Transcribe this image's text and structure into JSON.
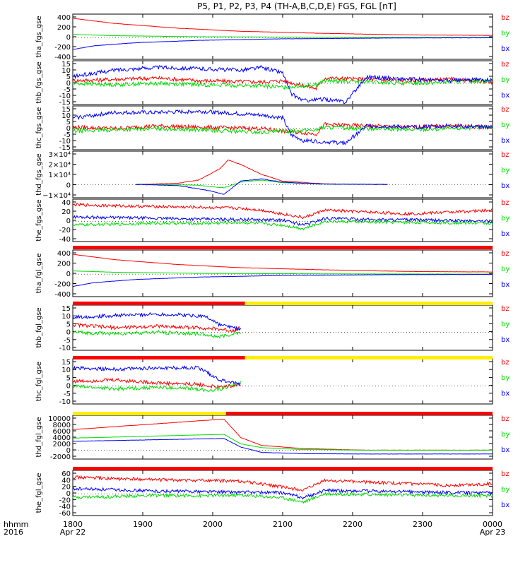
{
  "title": "P5, P1, P2, P3, P4 (TH-A,B,C,D,E) FGS, FGL [nT]",
  "colors": {
    "bz": "#ff0000",
    "by": "#00dd00",
    "bx": "#0000ff",
    "flag_red": "#ff0000",
    "flag_yellow": "#ffee00",
    "axis": "#000000"
  },
  "chart_data": {
    "type": "line",
    "x_axis": {
      "ticks": [
        {
          "time": "1800",
          "date": "Apr 22"
        },
        {
          "time": "1900",
          "date": ""
        },
        {
          "time": "2000",
          "date": ""
        },
        {
          "time": "2100",
          "date": ""
        },
        {
          "time": "2200",
          "date": ""
        },
        {
          "time": "2300",
          "date": ""
        },
        {
          "time": "0000",
          "date": "Apr 23"
        }
      ],
      "label_top": "hhmm",
      "label_bottom": "2016"
    },
    "panels": [
      {
        "ylabel": "tha_fgs_gse",
        "yticks": [
          "400",
          "200",
          "0",
          "-200",
          "-400"
        ],
        "ylim": [
          -420,
          450
        ],
        "legend": [
          "bz",
          "by",
          "bx"
        ],
        "series": [
          {
            "key": "bz",
            "x": [
              0,
              0.1,
              0.25,
              0.4,
              0.6,
              0.8,
              1.0
            ],
            "y": [
              370,
              270,
              180,
              120,
              80,
              50,
              40
            ]
          },
          {
            "key": "by",
            "x": [
              0,
              0.1,
              0.3,
              0.6,
              1.0
            ],
            "y": [
              60,
              35,
              15,
              5,
              0
            ]
          },
          {
            "key": "bx",
            "x": [
              0,
              0.05,
              0.15,
              0.3,
              0.5,
              0.75,
              1.0
            ],
            "y": [
              -230,
              -160,
              -100,
              -55,
              -25,
              -10,
              -5
            ]
          }
        ]
      },
      {
        "ylabel": "thb_fgs_gse",
        "yticks": [
          "15",
          "10",
          "5",
          "0",
          "-5",
          "-10",
          "-15"
        ],
        "ylim": [
          -16,
          17
        ],
        "legend": [
          "bz",
          "by",
          "bx"
        ],
        "series": [
          {
            "key": "bz",
            "x": [
              0,
              0.1,
              0.2,
              0.3,
              0.45,
              0.5,
              0.58,
              0.6,
              0.7,
              0.8,
              0.9,
              1.0
            ],
            "y": [
              2,
              3,
              4,
              2,
              1,
              2,
              -4,
              4,
              3,
              2,
              3,
              1
            ]
          },
          {
            "key": "by",
            "x": [
              0,
              0.1,
              0.2,
              0.3,
              0.45,
              0.5,
              0.58,
              0.6,
              0.7,
              0.8,
              0.9,
              1.0
            ],
            "y": [
              0,
              -1,
              0,
              -1,
              -2,
              -3,
              -1,
              2,
              1,
              0,
              1,
              2
            ]
          },
          {
            "key": "bx",
            "x": [
              0,
              0.1,
              0.2,
              0.3,
              0.4,
              0.45,
              0.5,
              0.52,
              0.55,
              0.6,
              0.65,
              0.7,
              0.8,
              0.9,
              1.0
            ],
            "y": [
              5,
              10,
              12,
              11,
              10,
              12,
              8,
              -8,
              -13,
              -12,
              -14,
              5,
              3,
              2,
              3
            ]
          }
        ]
      },
      {
        "ylabel": "thc_fgs_gse",
        "yticks": [
          "15",
          "10",
          "5",
          "0",
          "-5",
          "-10",
          "-15"
        ],
        "ylim": [
          -16,
          17
        ],
        "legend": [
          "bz",
          "by",
          "bx"
        ],
        "series": [
          {
            "key": "bz",
            "x": [
              0,
              0.1,
              0.2,
              0.3,
              0.45,
              0.5,
              0.58,
              0.6,
              0.7,
              0.8,
              0.9,
              1.0
            ],
            "y": [
              1,
              0,
              2,
              1,
              0,
              -2,
              -4,
              3,
              2,
              1,
              2,
              1
            ]
          },
          {
            "key": "by",
            "x": [
              0,
              0.1,
              0.2,
              0.3,
              0.45,
              0.5,
              0.58,
              0.6,
              0.7,
              0.8,
              0.9,
              1.0
            ],
            "y": [
              -2,
              -1,
              0,
              -1,
              -3,
              -2,
              -1,
              1,
              0,
              -1,
              0,
              1
            ]
          },
          {
            "key": "bx",
            "x": [
              0,
              0.1,
              0.2,
              0.3,
              0.4,
              0.45,
              0.5,
              0.52,
              0.55,
              0.6,
              0.65,
              0.7,
              0.8,
              0.9,
              1.0
            ],
            "y": [
              8,
              12,
              12,
              13,
              11,
              10,
              8,
              -5,
              -9,
              -10,
              -11,
              2,
              1,
              2,
              1
            ]
          }
        ]
      },
      {
        "ylabel": "thd_fgs_gse",
        "yticks": [
          "3×10⁴",
          "2×10⁴",
          "1×10⁴",
          "0",
          "−1×10⁴"
        ],
        "ylim": [
          -12000,
          30000
        ],
        "legend": [
          "bz",
          "by",
          "bx"
        ],
        "series": [
          {
            "key": "bz",
            "x": [
              0.15,
              0.25,
              0.3,
              0.35,
              0.37,
              0.4,
              0.45,
              0.5,
              0.6,
              0.7,
              0.75
            ],
            "y": [
              0,
              1000,
              4000,
              14000,
              22000,
              18000,
              9000,
              3000,
              500,
              0,
              0
            ]
          },
          {
            "key": "by",
            "x": [
              0.15,
              0.25,
              0.3,
              0.33,
              0.36,
              0.4,
              0.45,
              0.5,
              0.6,
              0.75
            ],
            "y": [
              0,
              -200,
              -800,
              -2000,
              -3000,
              2000,
              4000,
              1500,
              300,
              0
            ]
          },
          {
            "key": "bx",
            "x": [
              0.15,
              0.25,
              0.3,
              0.33,
              0.36,
              0.38,
              0.4,
              0.45,
              0.5,
              0.6,
              0.75
            ],
            "y": [
              0,
              -1000,
              -4000,
              -6000,
              -9000,
              -3000,
              3000,
              5000,
              2000,
              300,
              0
            ]
          }
        ]
      },
      {
        "ylabel": "the_fgs_gse",
        "yticks": [
          "40",
          "20",
          "0",
          "-20",
          "-40"
        ],
        "ylim": [
          -55,
          60
        ],
        "legend": [
          "bz",
          "by",
          "bx"
        ],
        "series": [
          {
            "key": "bz",
            "x": [
              0,
              0.1,
              0.2,
              0.3,
              0.4,
              0.45,
              0.5,
              0.55,
              0.6,
              0.7,
              0.8,
              0.9,
              1.0
            ],
            "y": [
              45,
              42,
              40,
              38,
              35,
              30,
              20,
              10,
              30,
              25,
              20,
              25,
              30
            ]
          },
          {
            "key": "by",
            "x": [
              0,
              0.1,
              0.2,
              0.3,
              0.4,
              0.5,
              0.55,
              0.6,
              0.7,
              0.8,
              0.9,
              1.0
            ],
            "y": [
              -10,
              -8,
              -5,
              -6,
              -3,
              -10,
              -20,
              0,
              -2,
              -3,
              -4,
              -5
            ]
          },
          {
            "key": "bx",
            "x": [
              0,
              0.1,
              0.2,
              0.3,
              0.4,
              0.5,
              0.55,
              0.6,
              0.7,
              0.8,
              0.9,
              1.0
            ],
            "y": [
              12,
              10,
              8,
              6,
              5,
              3,
              -10,
              8,
              5,
              4,
              2,
              0
            ]
          }
        ]
      },
      {
        "ylabel": "tha_fgl_gse",
        "yticks": [
          "400",
          "200",
          "0",
          "-200",
          "-400"
        ],
        "ylim": [
          -420,
          450
        ],
        "legend": [
          "bz",
          "by",
          "bx"
        ],
        "series": [
          {
            "key": "bz",
            "x": [
              0,
              0.1,
              0.25,
              0.4,
              0.6,
              0.8,
              1.0
            ],
            "y": [
              370,
              270,
              180,
              120,
              80,
              50,
              40
            ]
          },
          {
            "key": "by",
            "x": [
              0,
              0.1,
              0.3,
              0.6,
              1.0
            ],
            "y": [
              60,
              35,
              15,
              5,
              0
            ]
          },
          {
            "key": "bx",
            "x": [
              0,
              0.05,
              0.15,
              0.3,
              0.5,
              0.75,
              1.0
            ],
            "y": [
              -230,
              -160,
              -100,
              -55,
              -25,
              -10,
              -5
            ]
          }
        ]
      },
      {
        "ylabel": "thb_fgl_gse",
        "yticks": [
          "15",
          "10",
          "5",
          "0",
          "-5",
          "-10"
        ],
        "ylim": [
          -12,
          18
        ],
        "legend": [
          "bz",
          "by",
          "bx"
        ],
        "series": [
          {
            "key": "bz",
            "x": [
              0,
              0.1,
              0.2,
              0.3,
              0.35,
              0.38,
              0.4
            ],
            "y": [
              5,
              3,
              4,
              3,
              2,
              1,
              3
            ]
          },
          {
            "key": "by",
            "x": [
              0,
              0.1,
              0.2,
              0.3,
              0.32,
              0.35,
              0.4
            ],
            "y": [
              0,
              -1,
              0,
              -1,
              -2,
              -3,
              0
            ]
          },
          {
            "key": "bx",
            "x": [
              0,
              0.1,
              0.2,
              0.3,
              0.32,
              0.35,
              0.4
            ],
            "y": [
              10,
              11,
              12,
              11,
              10,
              5,
              2
            ]
          }
        ]
      },
      {
        "ylabel": "thc_fgl_gse",
        "yticks": [
          "15",
          "10",
          "5",
          "0",
          "-5",
          "-10"
        ],
        "ylim": [
          -12,
          18
        ],
        "legend": [
          "bz",
          "by",
          "bx"
        ],
        "series": [
          {
            "key": "bz",
            "x": [
              0,
              0.1,
              0.2,
              0.3,
              0.32,
              0.35,
              0.4
            ],
            "y": [
              3,
              4,
              2,
              1,
              0,
              -1,
              1
            ]
          },
          {
            "key": "by",
            "x": [
              0,
              0.1,
              0.2,
              0.3,
              0.32,
              0.35,
              0.4
            ],
            "y": [
              0,
              -2,
              -1,
              -2,
              -3,
              -2,
              2
            ]
          },
          {
            "key": "bx",
            "x": [
              0,
              0.1,
              0.2,
              0.3,
              0.32,
              0.35,
              0.4
            ],
            "y": [
              12,
              11,
              12,
              12,
              9,
              4,
              1
            ]
          }
        ]
      },
      {
        "ylabel": "thd_fgl_gse",
        "yticks": [
          "10000",
          "8000",
          "6000",
          "4000",
          "2000",
          "0",
          "-2000"
        ],
        "ylim": [
          -2800,
          11000
        ],
        "legend": [
          "bz",
          "by",
          "bx"
        ],
        "series": [
          {
            "key": "bz",
            "x": [
              0,
              0.36,
              0.4,
              0.45,
              0.55,
              0.7,
              1.0
            ],
            "y": [
              6500,
              9800,
              4000,
              1500,
              500,
              0,
              0
            ]
          },
          {
            "key": "by",
            "x": [
              0,
              0.36,
              0.4,
              0.45,
              0.55,
              0.7,
              1.0
            ],
            "y": [
              3800,
              5000,
              2000,
              800,
              200,
              0,
              0
            ]
          },
          {
            "key": "bx",
            "x": [
              0,
              0.36,
              0.4,
              0.45,
              0.55,
              0.7,
              1.0
            ],
            "y": [
              2800,
              3700,
              1000,
              -700,
              -1100,
              -1200,
              -1200
            ]
          }
        ]
      },
      {
        "ylabel": "the_fgl_gse",
        "yticks": [
          "60",
          "40",
          "20",
          "0",
          "-20",
          "-40",
          "-60"
        ],
        "ylim": [
          -65,
          70
        ],
        "legend": [
          "bz",
          "by",
          "bx"
        ],
        "series": [
          {
            "key": "bz",
            "x": [
              0,
              0.1,
              0.2,
              0.3,
              0.4,
              0.45,
              0.5,
              0.55,
              0.6,
              0.7,
              0.8,
              0.9,
              1.0
            ],
            "y": [
              50,
              45,
              42,
              40,
              38,
              30,
              20,
              10,
              40,
              35,
              30,
              25,
              30
            ]
          },
          {
            "key": "by",
            "x": [
              0,
              0.1,
              0.2,
              0.3,
              0.4,
              0.5,
              0.55,
              0.6,
              0.7,
              0.8,
              0.9,
              1.0
            ],
            "y": [
              -10,
              -8,
              -5,
              -6,
              -4,
              -12,
              -25,
              0,
              -2,
              -4,
              -5,
              -6
            ]
          },
          {
            "key": "bx",
            "x": [
              0,
              0.1,
              0.2,
              0.3,
              0.4,
              0.5,
              0.55,
              0.6,
              0.7,
              0.8,
              0.9,
              1.0
            ],
            "y": [
              15,
              12,
              8,
              7,
              5,
              3,
              -12,
              10,
              8,
              6,
              4,
              2
            ]
          }
        ]
      }
    ],
    "flag_bars": [
      {
        "after_panel": 4,
        "segments": [
          {
            "x0": 0,
            "x1": 1,
            "color": "red"
          }
        ]
      },
      {
        "after_panel": 5,
        "segments": [
          {
            "x0": 0,
            "x1": 0.41,
            "color": "red"
          },
          {
            "x0": 0.41,
            "x1": 1,
            "color": "yellow"
          }
        ]
      },
      {
        "after_panel": 6,
        "segments": [
          {
            "x0": 0,
            "x1": 0.41,
            "color": "red"
          },
          {
            "x0": 0.41,
            "x1": 1,
            "color": "yellow"
          }
        ]
      },
      {
        "after_panel": 7,
        "segments": [
          {
            "x0": 0,
            "x1": 0.365,
            "color": "yellow"
          },
          {
            "x0": 0.365,
            "x1": 1,
            "color": "red"
          }
        ]
      },
      {
        "after_panel": 8,
        "segments": [
          {
            "x0": 0,
            "x1": 1,
            "color": "red"
          }
        ]
      }
    ]
  }
}
